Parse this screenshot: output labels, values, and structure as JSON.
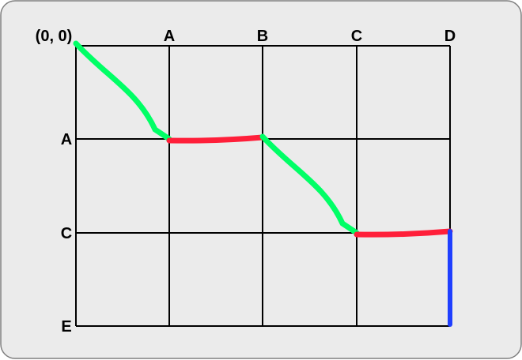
{
  "origin_label": "(0, 0)",
  "column_labels": [
    "A",
    "B",
    "C",
    "D"
  ],
  "row_labels": [
    "A",
    "C",
    "E"
  ],
  "colors": {
    "background": "#ebebeb",
    "border": "#7f7f7f",
    "grid": "#000000",
    "diagonal": "#00ff66",
    "horizontal": "#ff1f3a",
    "vertical": "#1f3fff"
  },
  "path": [
    {
      "from": [
        0,
        0
      ],
      "to": [
        1,
        1
      ],
      "kind": "diagonal"
    },
    {
      "from": [
        1,
        1
      ],
      "to": [
        2,
        1
      ],
      "kind": "horizontal"
    },
    {
      "from": [
        2,
        1
      ],
      "to": [
        3,
        2
      ],
      "kind": "diagonal"
    },
    {
      "from": [
        3,
        2
      ],
      "to": [
        4,
        2
      ],
      "kind": "horizontal"
    },
    {
      "from": [
        4,
        2
      ],
      "to": [
        4,
        3
      ],
      "kind": "vertical"
    }
  ]
}
